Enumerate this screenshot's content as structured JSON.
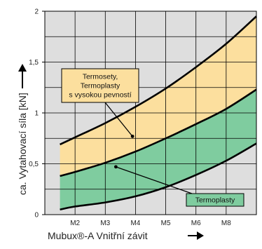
{
  "chart_data": {
    "type": "area",
    "xlabel": "Mubux®-A Vnitřní závit",
    "ylabel": "ca. Vytahovací síla [kN]",
    "categories": [
      "M2",
      "M3",
      "M4",
      "M5",
      "M6",
      "M8"
    ],
    "x_range": [
      0,
      7
    ],
    "ylim": [
      0,
      2
    ],
    "y_ticks": [
      "0",
      "0,5",
      "1",
      "1,5",
      "2"
    ],
    "grid": true,
    "curves": [
      {
        "id": "upper",
        "x": [
          0.5,
          1,
          2,
          3,
          4,
          5,
          6,
          7
        ],
        "y": [
          0.69,
          0.76,
          0.9,
          1.06,
          1.24,
          1.45,
          1.68,
          1.95
        ]
      },
      {
        "id": "middle",
        "x": [
          0.5,
          1,
          2,
          3,
          4,
          5,
          6,
          7
        ],
        "y": [
          0.38,
          0.42,
          0.51,
          0.62,
          0.75,
          0.89,
          1.04,
          1.23
        ]
      },
      {
        "id": "lower",
        "x": [
          0.5,
          1,
          2,
          3,
          4,
          5,
          6,
          7
        ],
        "y": [
          0.05,
          0.08,
          0.12,
          0.18,
          0.27,
          0.39,
          0.53,
          0.7
        ]
      }
    ],
    "series": [
      {
        "name": "Termosety,\nTermoplasty\ns vysokou pevností",
        "between": [
          "middle",
          "upper"
        ],
        "color": "#FCDF9E"
      },
      {
        "name": "Termoplasty",
        "between": [
          "lower",
          "middle"
        ],
        "color": "#7FCC9F"
      }
    ],
    "annotations": [
      {
        "text": [
          "Termosety,",
          "Termoplasty",
          "s vysokou pevností"
        ],
        "box_color": "#FCDF9E",
        "point": [
          2.9,
          0.77
        ]
      },
      {
        "text": [
          "Termoplasty"
        ],
        "box_color": "#7FCC9F",
        "point": [
          2.35,
          0.47
        ]
      }
    ],
    "colors": {
      "plot_bg": "#DEDEDE",
      "grid": "#000000",
      "curve": "#000000"
    }
  }
}
